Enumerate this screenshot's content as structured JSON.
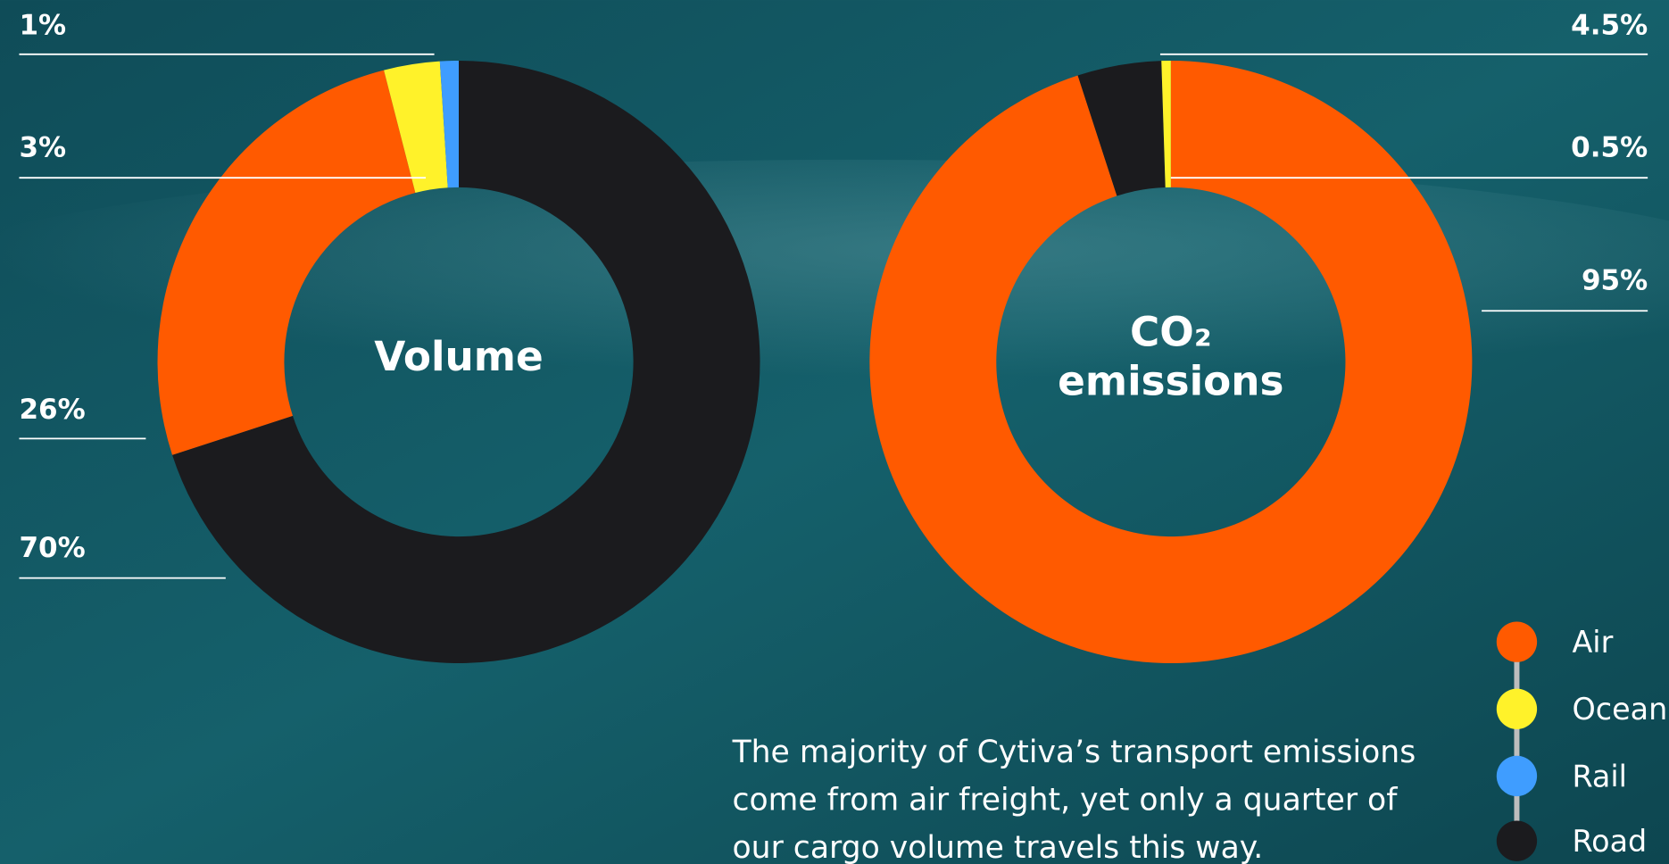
{
  "chart_data": [
    {
      "type": "donut",
      "title": "Volume",
      "categories": [
        "Road",
        "Air",
        "Ocean",
        "Rail"
      ],
      "values": [
        70,
        26,
        3,
        1
      ],
      "value_labels": [
        "70%",
        "26%",
        "3%",
        "1%"
      ],
      "colors": [
        "#1b1b1e",
        "#ff5a00",
        "#fff22a",
        "#3f9dff"
      ]
    },
    {
      "type": "donut",
      "title": "CO₂ emissions",
      "categories": [
        "Air",
        "Road",
        "Ocean"
      ],
      "values": [
        95,
        4.5,
        0.5
      ],
      "value_labels": [
        "95%",
        "4.5%",
        "0.5%"
      ],
      "colors": [
        "#ff5a00",
        "#1b1b1e",
        "#fff22a"
      ]
    }
  ],
  "legend": {
    "items": [
      {
        "name": "Air",
        "color": "#ff5a00"
      },
      {
        "name": "Ocean",
        "color": "#fff22a"
      },
      {
        "name": "Rail",
        "color": "#3f9dff"
      },
      {
        "name": "Road",
        "color": "#1b1b1e"
      }
    ]
  },
  "caption": "The majority of Cytiva’s transport emissions come from air freight, yet only a quarter of our cargo volume travels this way."
}
